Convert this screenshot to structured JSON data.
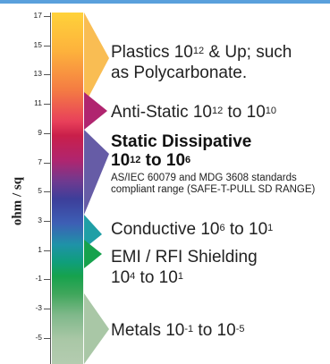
{
  "yaxis": {
    "label": "ohm / sq",
    "ticks": [
      "17",
      "15",
      "13",
      "11",
      "9",
      "7",
      "5",
      "3",
      "1",
      "-1",
      "-3",
      "-5"
    ]
  },
  "ranges": [
    {
      "id": "plastics",
      "line1": "Plastics 10",
      "sup1": "12",
      "after1": " & Up; such",
      "line2": "as Polycarbonate."
    },
    {
      "id": "antistatic",
      "pre": "Anti-Static 10",
      "sup1": "12",
      "mid": " to 10",
      "sup2": "10"
    },
    {
      "id": "dissipative",
      "title1": "Static Dissipative",
      "title2pre": "10",
      "sup1": "12",
      "title2mid": " to 10",
      "sup2": "6",
      "note1": "AS/IEC 60079 and MDG 3608 standards",
      "note2": "compliant range (SAFE-T-PULL SD RANGE)"
    },
    {
      "id": "conductive",
      "pre": "Conductive 10",
      "sup1": "6",
      "mid": " to 10",
      "sup2": "1"
    },
    {
      "id": "emi",
      "line1": "EMI / RFI Shielding",
      "line2pre": "10",
      "sup1": "4",
      "line2mid": " to 10",
      "sup2": "1"
    },
    {
      "id": "metals",
      "pre": "Metals 10",
      "sup1": "-1",
      "mid": " to 10",
      "sup2": "-5"
    }
  ],
  "colors": {
    "accent_line": "#5aa0dc",
    "antistatic": "#b0256f",
    "dissipative": "#4b3f97",
    "conductive": "#1f9fa6",
    "emi": "#16a24d",
    "metals": "#a9c7a6",
    "plastics": "#f8b640"
  }
}
